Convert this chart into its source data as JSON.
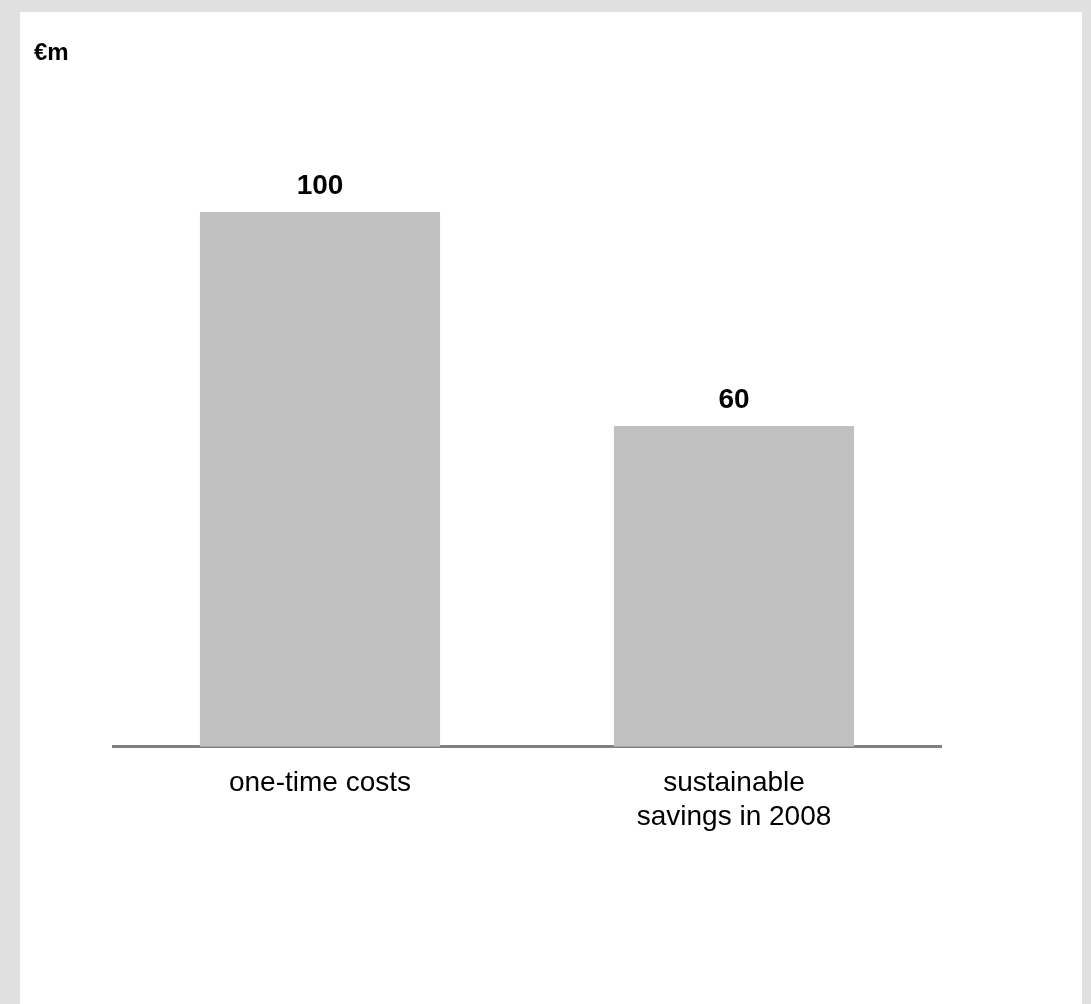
{
  "chart_data": {
    "type": "bar",
    "annotations": [
      "€m"
    ],
    "categories": [
      "one-time costs",
      "sustainable savings in 2008"
    ],
    "values": [
      100,
      60
    ],
    "color": "#c0c0c0",
    "data_labels": true,
    "legend": false
  }
}
